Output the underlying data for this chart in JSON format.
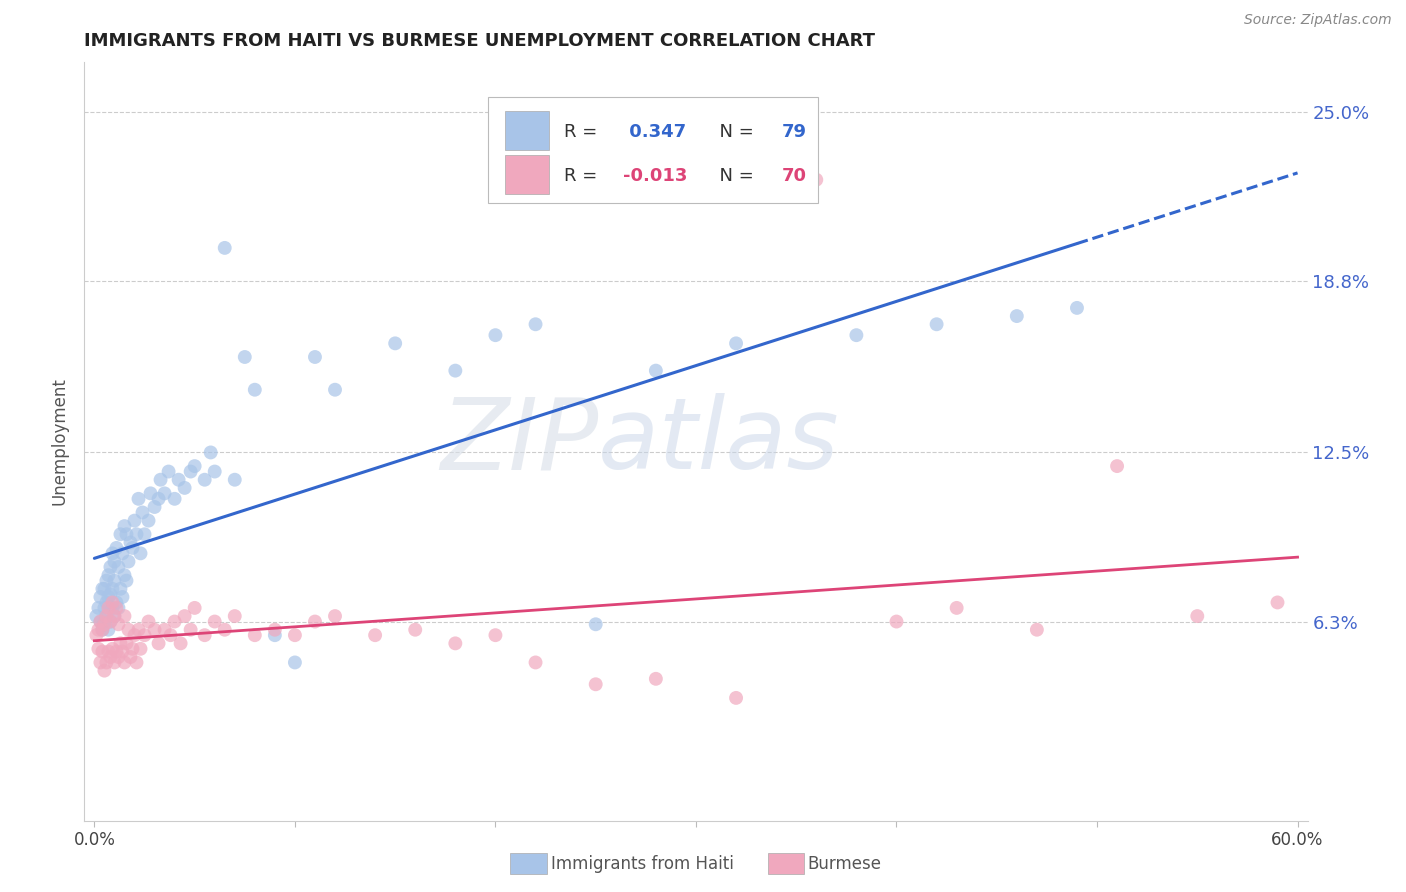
{
  "title": "IMMIGRANTS FROM HAITI VS BURMESE UNEMPLOYMENT CORRELATION CHART",
  "source": "Source: ZipAtlas.com",
  "ylabel": "Unemployment",
  "ytick_labels": [
    "6.3%",
    "12.5%",
    "18.8%",
    "25.0%"
  ],
  "ytick_values": [
    0.063,
    0.125,
    0.188,
    0.25
  ],
  "xlim": [
    -0.005,
    0.605
  ],
  "ylim": [
    -0.01,
    0.268
  ],
  "haiti_R": 0.347,
  "haiti_N": 79,
  "burmese_R": -0.013,
  "burmese_N": 70,
  "haiti_color": "#a8c4e8",
  "burmese_color": "#f0a8be",
  "haiti_line_color": "#3366cc",
  "burmese_line_color": "#dd4477",
  "background_color": "#ffffff",
  "haiti_x": [
    0.001,
    0.002,
    0.003,
    0.003,
    0.004,
    0.004,
    0.005,
    0.005,
    0.005,
    0.006,
    0.006,
    0.006,
    0.007,
    0.007,
    0.007,
    0.008,
    0.008,
    0.008,
    0.009,
    0.009,
    0.009,
    0.01,
    0.01,
    0.01,
    0.011,
    0.011,
    0.012,
    0.012,
    0.013,
    0.013,
    0.014,
    0.014,
    0.015,
    0.015,
    0.016,
    0.016,
    0.017,
    0.018,
    0.019,
    0.02,
    0.021,
    0.022,
    0.023,
    0.024,
    0.025,
    0.027,
    0.028,
    0.03,
    0.032,
    0.033,
    0.035,
    0.037,
    0.04,
    0.042,
    0.045,
    0.048,
    0.05,
    0.055,
    0.058,
    0.06,
    0.065,
    0.07,
    0.075,
    0.08,
    0.09,
    0.1,
    0.11,
    0.12,
    0.15,
    0.18,
    0.2,
    0.22,
    0.25,
    0.28,
    0.32,
    0.38,
    0.42,
    0.46,
    0.49
  ],
  "haiti_y": [
    0.065,
    0.068,
    0.063,
    0.072,
    0.06,
    0.075,
    0.063,
    0.068,
    0.075,
    0.065,
    0.07,
    0.078,
    0.06,
    0.072,
    0.08,
    0.063,
    0.073,
    0.083,
    0.068,
    0.075,
    0.088,
    0.065,
    0.078,
    0.085,
    0.07,
    0.09,
    0.068,
    0.083,
    0.075,
    0.095,
    0.072,
    0.088,
    0.08,
    0.098,
    0.078,
    0.095,
    0.085,
    0.092,
    0.09,
    0.1,
    0.095,
    0.108,
    0.088,
    0.103,
    0.095,
    0.1,
    0.11,
    0.105,
    0.108,
    0.115,
    0.11,
    0.118,
    0.108,
    0.115,
    0.112,
    0.118,
    0.12,
    0.115,
    0.125,
    0.118,
    0.2,
    0.115,
    0.16,
    0.148,
    0.058,
    0.048,
    0.16,
    0.148,
    0.165,
    0.155,
    0.168,
    0.172,
    0.062,
    0.155,
    0.165,
    0.168,
    0.172,
    0.175,
    0.178
  ],
  "burmese_x": [
    0.001,
    0.002,
    0.002,
    0.003,
    0.003,
    0.004,
    0.004,
    0.005,
    0.005,
    0.006,
    0.006,
    0.007,
    0.007,
    0.008,
    0.008,
    0.009,
    0.009,
    0.01,
    0.01,
    0.011,
    0.011,
    0.012,
    0.012,
    0.013,
    0.014,
    0.015,
    0.015,
    0.016,
    0.017,
    0.018,
    0.019,
    0.02,
    0.021,
    0.022,
    0.023,
    0.025,
    0.027,
    0.03,
    0.032,
    0.035,
    0.038,
    0.04,
    0.043,
    0.045,
    0.048,
    0.05,
    0.055,
    0.06,
    0.065,
    0.07,
    0.08,
    0.09,
    0.1,
    0.11,
    0.12,
    0.14,
    0.16,
    0.18,
    0.2,
    0.22,
    0.25,
    0.28,
    0.32,
    0.36,
    0.4,
    0.43,
    0.47,
    0.51,
    0.55,
    0.59
  ],
  "burmese_y": [
    0.058,
    0.053,
    0.06,
    0.048,
    0.063,
    0.052,
    0.06,
    0.045,
    0.062,
    0.048,
    0.065,
    0.052,
    0.068,
    0.05,
    0.063,
    0.053,
    0.07,
    0.048,
    0.065,
    0.052,
    0.068,
    0.05,
    0.062,
    0.055,
    0.052,
    0.048,
    0.065,
    0.055,
    0.06,
    0.05,
    0.053,
    0.058,
    0.048,
    0.06,
    0.053,
    0.058,
    0.063,
    0.06,
    0.055,
    0.06,
    0.058,
    0.063,
    0.055,
    0.065,
    0.06,
    0.068,
    0.058,
    0.063,
    0.06,
    0.065,
    0.058,
    0.06,
    0.058,
    0.063,
    0.065,
    0.058,
    0.06,
    0.055,
    0.058,
    0.048,
    0.04,
    0.042,
    0.035,
    0.225,
    0.063,
    0.068,
    0.06,
    0.12,
    0.065,
    0.07
  ]
}
